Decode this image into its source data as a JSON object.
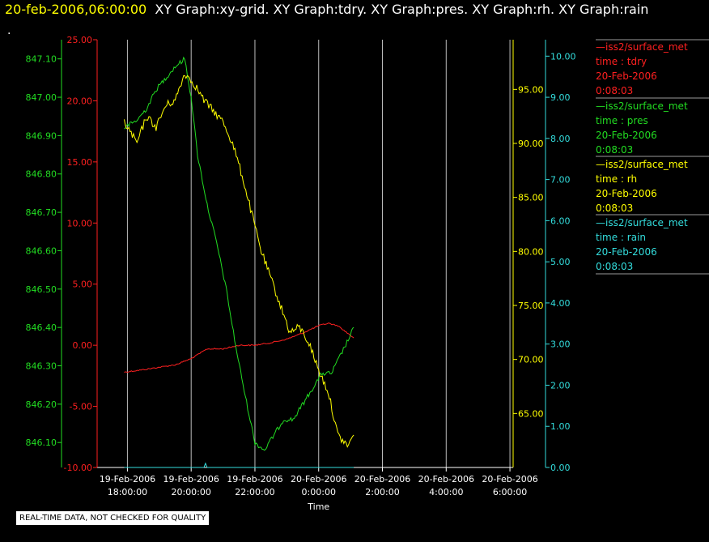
{
  "header": {
    "timestamp": "20-feb-2006,06:00:00",
    "graphs": "XY Graph:xy-grid.  XY Graph:tdry.  XY Graph:pres.  XY Graph:rh.  XY Graph:rain",
    "dot": "."
  },
  "legend": [
    {
      "dataset": "—iss2/surface_met",
      "var": "time : tdry",
      "date": "20-Feb-2006",
      "time": "0:08:03",
      "color": "#ff2020"
    },
    {
      "dataset": "—iss2/surface_met",
      "var": "time : pres",
      "date": "20-Feb-2006",
      "time": "0:08:03",
      "color": "#22dd22"
    },
    {
      "dataset": "—iss2/surface_met",
      "var": "time : rh",
      "date": "20-Feb-2006",
      "time": "0:08:03",
      "color": "#ffff00"
    },
    {
      "dataset": "—iss2/surface_met",
      "var": "time : rain",
      "date": "20-Feb-2006",
      "time": "0:08:03",
      "color": "#33dddd"
    }
  ],
  "disclaimer": "REAL-TIME DATA, NOT CHECKED FOR QUALITY",
  "chart_data": {
    "type": "line",
    "xlabel": "Time",
    "x_ticks": [
      {
        "date": "19-Feb-2006",
        "time": "18:00:00"
      },
      {
        "date": "19-Feb-2006",
        "time": "20:00:00"
      },
      {
        "date": "19-Feb-2006",
        "time": "22:00:00"
      },
      {
        "date": "20-Feb-2006",
        "time": "0:00:00"
      },
      {
        "date": "20-Feb-2006",
        "time": "2:00:00"
      },
      {
        "date": "20-Feb-2006",
        "time": "4:00:00"
      },
      {
        "date": "20-Feb-2006",
        "time": "6:00:00"
      }
    ],
    "x_hours": [
      0,
      2,
      4,
      6,
      8,
      10,
      12
    ],
    "xlim": [
      -0.95,
      12.1
    ],
    "axes": {
      "tdry": {
        "color": "#ff2020",
        "ylim": [
          -10,
          25
        ],
        "ticks": [
          "-10.00",
          "-5.00",
          "0.00",
          "5.00",
          "10.00",
          "15.00",
          "20.00",
          "25.00"
        ]
      },
      "pres": {
        "color": "#22dd22",
        "ylim": [
          846.035,
          847.15
        ],
        "ticks": [
          "846.10",
          "846.20",
          "846.30",
          "846.40",
          "846.50",
          "846.60",
          "846.70",
          "846.80",
          "846.90",
          "847.00",
          "847.10"
        ]
      },
      "rh": {
        "color": "#ffff00",
        "ylim": [
          60.0,
          99.6
        ],
        "ticks": [
          "65.00",
          "70.00",
          "75.00",
          "80.00",
          "85.00",
          "90.00",
          "95.00"
        ]
      },
      "rain": {
        "color": "#33dddd",
        "ylim": [
          0.0,
          10.4
        ],
        "ticks": [
          "0.00",
          "1.00",
          "2.00",
          "3.00",
          "4.00",
          "5.00",
          "6.00",
          "7.00",
          "8.00",
          "9.00",
          "10.00"
        ]
      }
    },
    "series": [
      {
        "name": "tdry",
        "axis": "tdry",
        "color": "#ff2020",
        "x": [
          -0.1,
          0.5,
          1.0,
          1.5,
          2.0,
          2.5,
          3.0,
          3.5,
          4.0,
          4.5,
          5.0,
          5.5,
          6.0,
          6.3,
          6.6,
          6.9,
          7.1
        ],
        "y": [
          -2.2,
          -2.0,
          -1.8,
          -1.6,
          -1.1,
          -0.3,
          -0.3,
          0.0,
          0.0,
          0.2,
          0.5,
          1.0,
          1.6,
          1.8,
          1.6,
          1.0,
          0.6
        ]
      },
      {
        "name": "pres",
        "axis": "pres",
        "color": "#22dd22",
        "x": [
          -0.1,
          0.3,
          0.6,
          0.9,
          1.2,
          1.5,
          1.8,
          2.0,
          2.2,
          2.5,
          2.8,
          3.1,
          3.4,
          3.7,
          4.0,
          4.3,
          4.6,
          4.9,
          5.2,
          5.5,
          5.8,
          6.1,
          6.4,
          6.7,
          7.0,
          7.1
        ],
        "y": [
          846.92,
          846.94,
          846.97,
          847.02,
          847.05,
          847.08,
          847.1,
          847.0,
          846.85,
          846.72,
          846.62,
          846.5,
          846.35,
          846.22,
          846.1,
          846.08,
          846.12,
          846.16,
          846.16,
          846.2,
          846.24,
          846.28,
          846.28,
          846.33,
          846.38,
          846.4
        ]
      },
      {
        "name": "rh",
        "axis": "rh",
        "color": "#ffff00",
        "x": [
          -0.1,
          0.3,
          0.6,
          0.9,
          1.2,
          1.5,
          1.8,
          2.1,
          2.4,
          2.7,
          3.0,
          3.3,
          3.6,
          3.9,
          4.2,
          4.5,
          4.8,
          5.1,
          5.4,
          5.7,
          6.0,
          6.3,
          6.6,
          6.9,
          7.1
        ],
        "y": [
          92.0,
          90.0,
          92.5,
          91.5,
          93.5,
          94.0,
          96.5,
          95.5,
          94.0,
          93.0,
          92.0,
          90.0,
          87.0,
          83.5,
          80.0,
          77.5,
          75.0,
          72.5,
          73.0,
          71.5,
          69.0,
          67.0,
          63.0,
          62.0,
          63.0
        ]
      },
      {
        "name": "rain",
        "axis": "rain",
        "color": "#33dddd",
        "x": [
          -0.1,
          2.4,
          2.45,
          2.5,
          7.1
        ],
        "y": [
          0.0,
          0.0,
          0.1,
          0.0,
          0.0
        ]
      }
    ]
  }
}
